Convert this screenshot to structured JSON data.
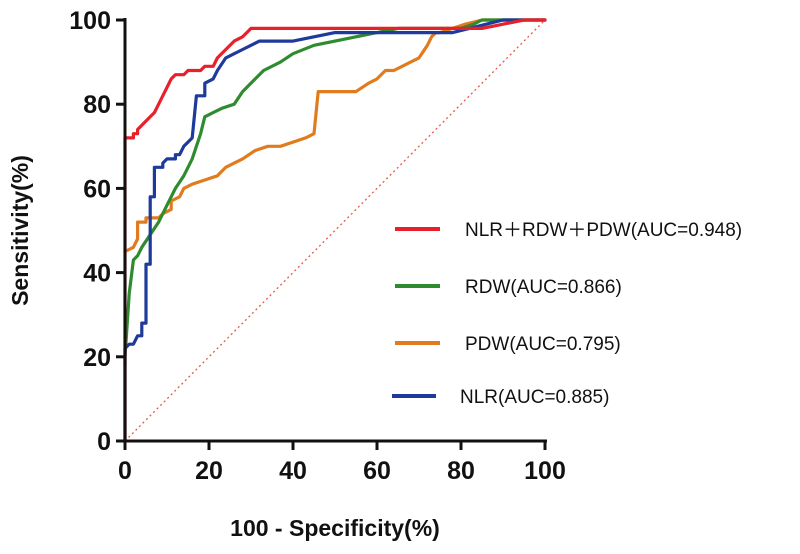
{
  "chart_data": {
    "type": "line",
    "title": "",
    "xlabel": "100 - Specificity(%)",
    "ylabel": "Sensitivity(%)",
    "xlim": [
      0,
      100
    ],
    "ylim": [
      0,
      100
    ],
    "xticks": [
      "0",
      "20",
      "40",
      "60",
      "80",
      "100"
    ],
    "yticks": [
      "0",
      "20",
      "40",
      "60",
      "80",
      "100"
    ],
    "legend_position": "right-center",
    "reference_line": {
      "name": "chance diagonal",
      "points": [
        [
          0,
          0
        ],
        [
          100,
          100
        ]
      ],
      "color": "#e8584a",
      "style": "dotted"
    },
    "series": [
      {
        "name": "NLR＋RDW＋PDW(AUC=0.948)",
        "color": "#e8202a",
        "points": [
          [
            0,
            0
          ],
          [
            0,
            72
          ],
          [
            2,
            72
          ],
          [
            2,
            73
          ],
          [
            3,
            73
          ],
          [
            3,
            74
          ],
          [
            4,
            75
          ],
          [
            5,
            76
          ],
          [
            6,
            77
          ],
          [
            7,
            78
          ],
          [
            8,
            80
          ],
          [
            9,
            82
          ],
          [
            10,
            84
          ],
          [
            11,
            86
          ],
          [
            12,
            87
          ],
          [
            14,
            87
          ],
          [
            15,
            88
          ],
          [
            18,
            88
          ],
          [
            19,
            89
          ],
          [
            21,
            89
          ],
          [
            22,
            91
          ],
          [
            24,
            93
          ],
          [
            26,
            95
          ],
          [
            28,
            96
          ],
          [
            29,
            97
          ],
          [
            30,
            98
          ],
          [
            50,
            98
          ],
          [
            70,
            98
          ],
          [
            85,
            98
          ],
          [
            90,
            99
          ],
          [
            95,
            100
          ],
          [
            100,
            100
          ]
        ]
      },
      {
        "name": "RDW(AUC=0.866)",
        "color": "#2e8b2e",
        "points": [
          [
            0,
            18
          ],
          [
            0,
            20
          ],
          [
            1,
            35
          ],
          [
            2,
            43
          ],
          [
            3,
            44
          ],
          [
            4,
            46
          ],
          [
            6,
            49
          ],
          [
            8,
            52
          ],
          [
            10,
            56
          ],
          [
            12,
            60
          ],
          [
            14,
            63
          ],
          [
            16,
            67
          ],
          [
            18,
            73
          ],
          [
            19,
            77
          ],
          [
            21,
            78
          ],
          [
            23,
            79
          ],
          [
            26,
            80
          ],
          [
            28,
            83
          ],
          [
            31,
            86
          ],
          [
            33,
            88
          ],
          [
            37,
            90
          ],
          [
            40,
            92
          ],
          [
            45,
            94
          ],
          [
            50,
            95
          ],
          [
            55,
            96
          ],
          [
            60,
            97
          ],
          [
            65,
            98
          ],
          [
            70,
            98
          ],
          [
            75,
            98
          ],
          [
            80,
            98
          ],
          [
            83,
            99
          ],
          [
            85,
            100
          ],
          [
            100,
            100
          ]
        ]
      },
      {
        "name": "PDW(AUC=0.795)",
        "color": "#e07c1e",
        "points": [
          [
            0,
            45
          ],
          [
            2,
            46
          ],
          [
            3,
            48
          ],
          [
            3,
            52
          ],
          [
            5,
            52
          ],
          [
            5,
            53
          ],
          [
            8,
            53
          ],
          [
            9,
            54
          ],
          [
            11,
            55
          ],
          [
            11,
            57
          ],
          [
            13,
            58
          ],
          [
            14,
            60
          ],
          [
            16,
            61
          ],
          [
            19,
            62
          ],
          [
            22,
            63
          ],
          [
            24,
            65
          ],
          [
            26,
            66
          ],
          [
            28,
            67
          ],
          [
            31,
            69
          ],
          [
            34,
            70
          ],
          [
            37,
            70
          ],
          [
            40,
            71
          ],
          [
            43,
            72
          ],
          [
            45,
            73
          ],
          [
            46,
            83
          ],
          [
            50,
            83
          ],
          [
            55,
            83
          ],
          [
            58,
            85
          ],
          [
            60,
            86
          ],
          [
            62,
            88
          ],
          [
            64,
            88
          ],
          [
            66,
            89
          ],
          [
            68,
            90
          ],
          [
            70,
            91
          ],
          [
            72,
            94
          ],
          [
            73,
            96
          ],
          [
            74,
            97
          ],
          [
            75,
            97
          ],
          [
            78,
            98
          ],
          [
            81,
            99
          ],
          [
            85,
            100
          ],
          [
            100,
            100
          ]
        ]
      },
      {
        "name": "NLR(AUC=0.885)",
        "color": "#1e3a9a",
        "points": [
          [
            0,
            0
          ],
          [
            0,
            22
          ],
          [
            1,
            23
          ],
          [
            2,
            23
          ],
          [
            3,
            25
          ],
          [
            4,
            25
          ],
          [
            4,
            28
          ],
          [
            5,
            28
          ],
          [
            5,
            42
          ],
          [
            6,
            42
          ],
          [
            6,
            58
          ],
          [
            7,
            58
          ],
          [
            7,
            65
          ],
          [
            9,
            65
          ],
          [
            9,
            66
          ],
          [
            10,
            67
          ],
          [
            12,
            67
          ],
          [
            12,
            68
          ],
          [
            13,
            68
          ],
          [
            14,
            70
          ],
          [
            15,
            71
          ],
          [
            16,
            72
          ],
          [
            17,
            82
          ],
          [
            19,
            82
          ],
          [
            19,
            85
          ],
          [
            21,
            86
          ],
          [
            22,
            88
          ],
          [
            24,
            91
          ],
          [
            26,
            92
          ],
          [
            28,
            93
          ],
          [
            30,
            94
          ],
          [
            32,
            95
          ],
          [
            36,
            95
          ],
          [
            40,
            95
          ],
          [
            45,
            96
          ],
          [
            50,
            97
          ],
          [
            55,
            97
          ],
          [
            60,
            97
          ],
          [
            65,
            97
          ],
          [
            70,
            97
          ],
          [
            78,
            97
          ],
          [
            82,
            98
          ],
          [
            86,
            99
          ],
          [
            90,
            100
          ],
          [
            100,
            100
          ]
        ]
      }
    ]
  }
}
